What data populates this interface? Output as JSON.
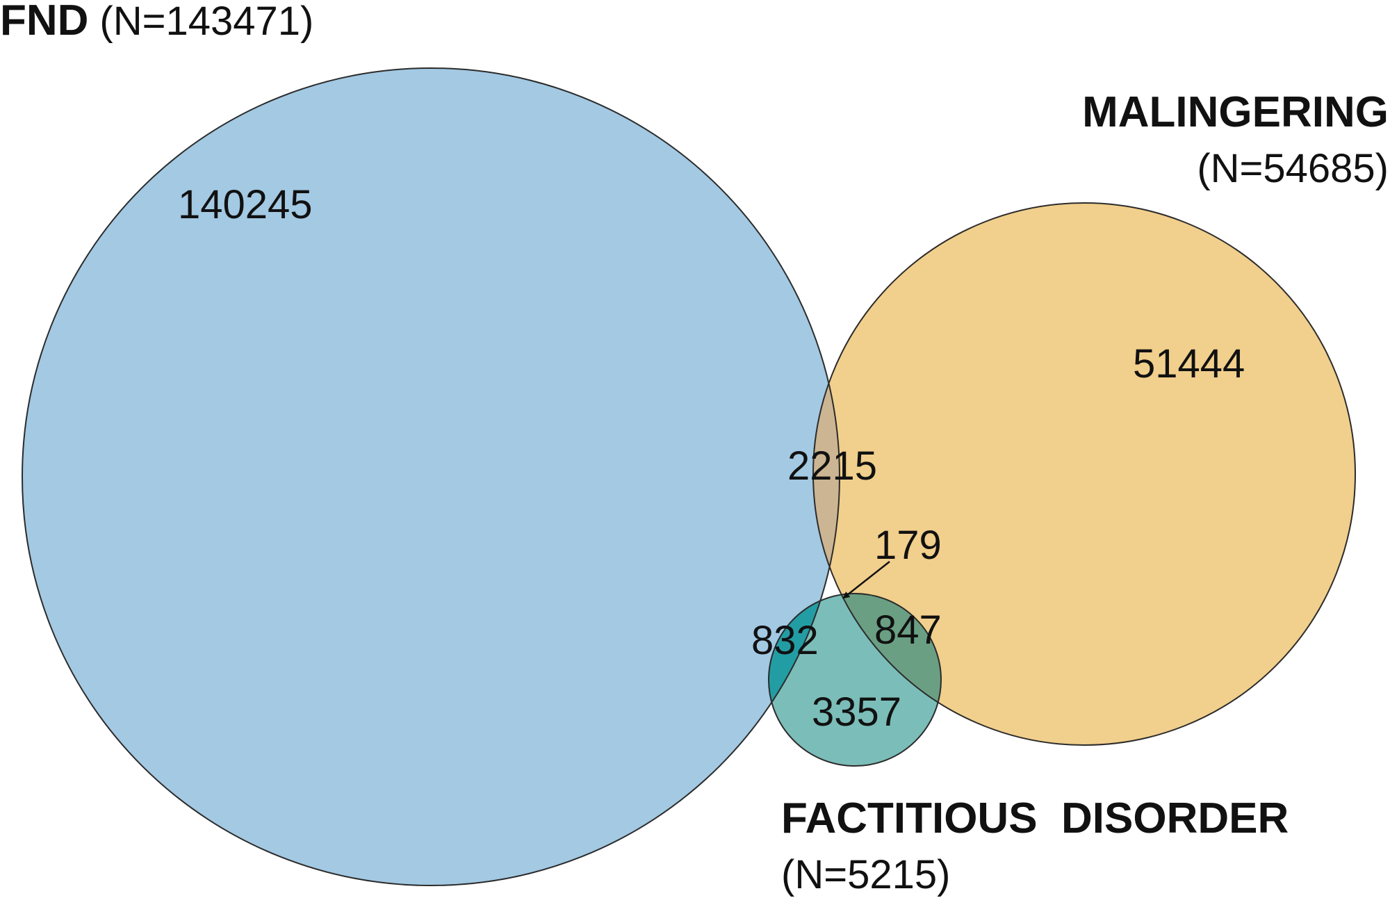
{
  "colors": {
    "fnd_fill": "#a3c9e3",
    "malingering_fill": "#f1cf8c",
    "factitious_fill": "#239da4",
    "outline": "#2b2b2b",
    "text": "#111111"
  },
  "sets": {
    "fnd": {
      "name": "FND",
      "count": "(N=143471)",
      "total": 143471
    },
    "malingering": {
      "name": "MALINGERING",
      "count": "(N=54685)",
      "total": 54685
    },
    "factitious": {
      "name": "FACTITIOUS  DISORDER",
      "count": "(N=5215)",
      "total": 5215
    }
  },
  "regions": {
    "fnd_only": "140245",
    "malingering_only": "51444",
    "fnd_malingering": "2215",
    "all_three": "179",
    "fnd_factitious": "832",
    "malingering_factitious": "847",
    "factitious_only": "3357"
  }
}
